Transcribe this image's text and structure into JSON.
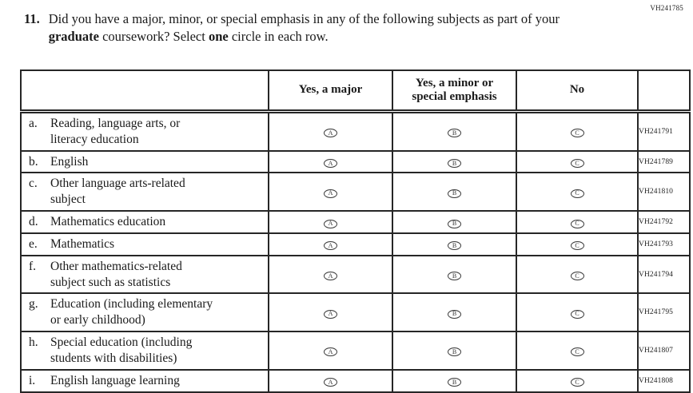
{
  "form_code": "VH241785",
  "question": {
    "number": "11.",
    "segments": [
      {
        "text": "Did you have a major, minor, or special emphasis in any of the following subjects as part of your ",
        "bold": false
      },
      {
        "text": "graduate",
        "bold": true
      },
      {
        "text": " coursework? Select ",
        "bold": false
      },
      {
        "text": "one",
        "bold": true
      },
      {
        "text": " circle in each row.",
        "bold": false
      }
    ]
  },
  "table": {
    "header": {
      "col_label": "",
      "col_major": "Yes, a major",
      "col_minor": "Yes, a minor or\nspecial emphasis",
      "col_no": "No",
      "col_code": ""
    },
    "bubble_letters": [
      "A",
      "B",
      "C"
    ],
    "rows": [
      {
        "letter": "a.",
        "label": "Reading, language arts, or\nliteracy education",
        "code": "VH241791"
      },
      {
        "letter": "b.",
        "label": "English",
        "code": "VH241789"
      },
      {
        "letter": "c.",
        "label": "Other language arts-related\nsubject",
        "code": "VH241810"
      },
      {
        "letter": "d.",
        "label": "Mathematics education",
        "code": "VH241792"
      },
      {
        "letter": "e.",
        "label": "Mathematics",
        "code": "VH241793"
      },
      {
        "letter": "f.",
        "label": "Other mathematics-related\nsubject such as statistics",
        "code": "VH241794"
      },
      {
        "letter": "g.",
        "label": "Education (including elementary\nor early childhood)",
        "code": "VH241795"
      },
      {
        "letter": "h.",
        "label": "Special education (including\nstudents with disabilities)",
        "code": "VH241807"
      },
      {
        "letter": "i.",
        "label": "English language learning",
        "code": "VH241808"
      }
    ]
  }
}
